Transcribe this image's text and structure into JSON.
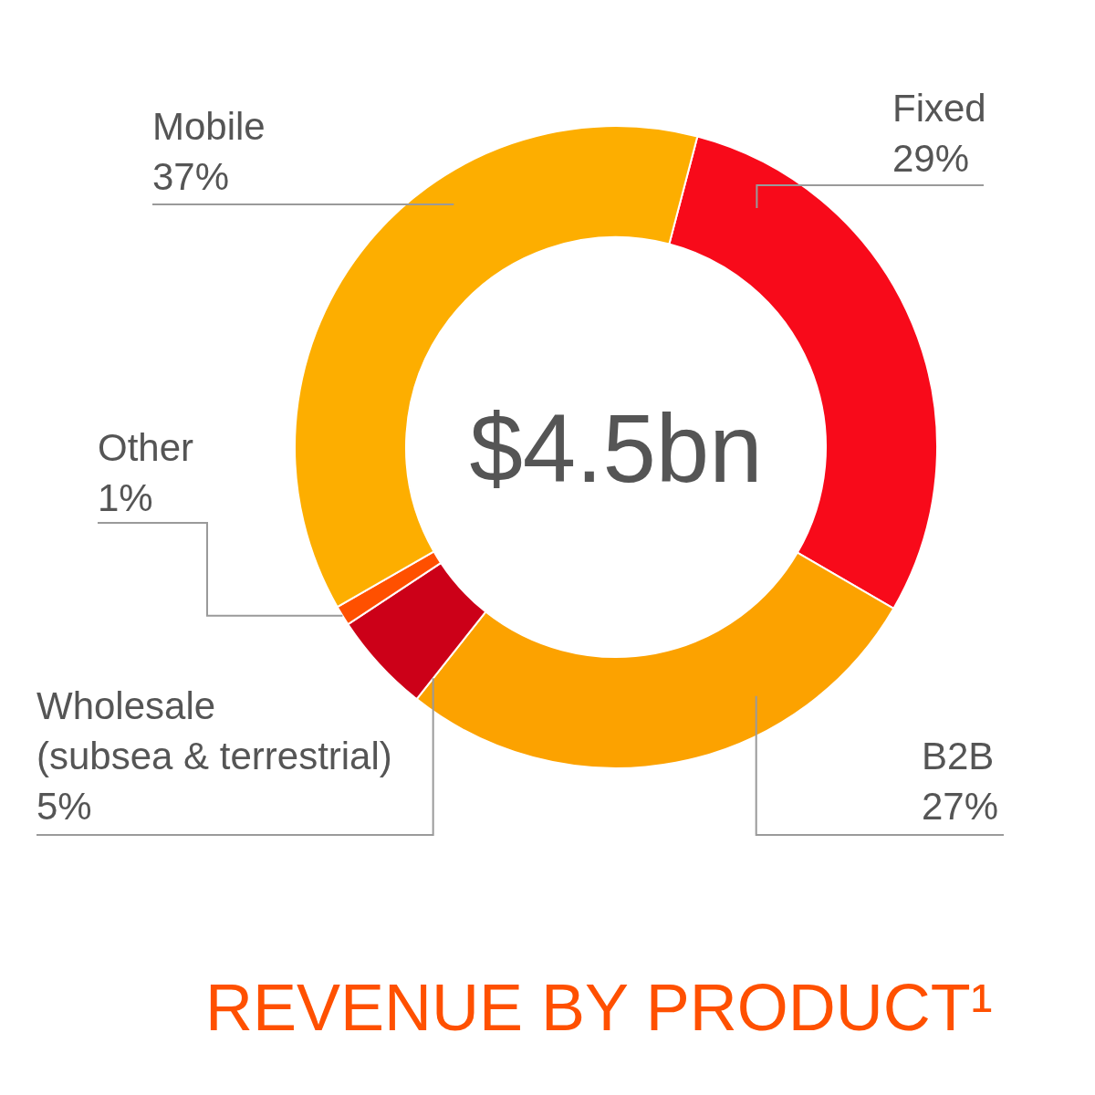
{
  "chart_data": {
    "type": "donut",
    "title": "REVENUE BY PRODUCT¹",
    "categories": [
      "Fixed",
      "B2B",
      "Wholesale (subsea & terrestrial)",
      "Other",
      "Mobile"
    ],
    "values": [
      29,
      27,
      5,
      1,
      37
    ],
    "value_labels": [
      "29%",
      "27%",
      "5%",
      "1%",
      "37%"
    ],
    "colors": [
      "#f80a1a",
      "#fca200",
      "#cc0018",
      "#ff5000",
      "#fdae00"
    ],
    "annotations": [
      "$4.5bn"
    ]
  }
}
